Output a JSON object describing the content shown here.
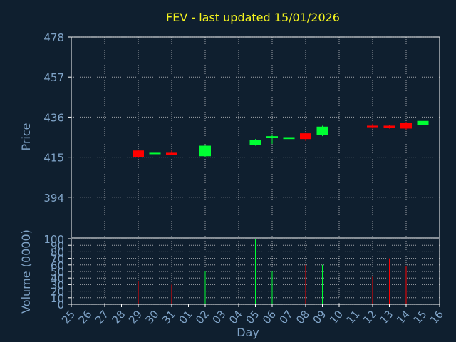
{
  "title": "FEV - last updated 15/01/2026",
  "chart_data": [
    {
      "type": "candlestick",
      "ylabel": "Price",
      "ylim": [
        373,
        478
      ],
      "yticks": [
        394,
        415,
        436,
        457,
        478
      ],
      "grid": true,
      "x": [
        "25",
        "26",
        "27",
        "28",
        "29",
        "30",
        "31",
        "01",
        "02",
        "03",
        "04",
        "05",
        "06",
        "07",
        "08",
        "09",
        "10",
        "11",
        "12",
        "13",
        "14",
        "15",
        "16"
      ],
      "up_color": "#00ff33",
      "down_color": "#ff0000",
      "candles": [
        {
          "x": "29",
          "open": 418.5,
          "high": 418.8,
          "low": 414.5,
          "close": 415.0
        },
        {
          "x": "30",
          "open": 416.8,
          "high": 417.5,
          "low": 416.5,
          "close": 417.3
        },
        {
          "x": "31",
          "open": 417.3,
          "high": 418.5,
          "low": 416.0,
          "close": 416.2
        },
        {
          "x": "02",
          "open": 415.5,
          "high": 421.3,
          "low": 415.0,
          "close": 421.0
        },
        {
          "x": "05",
          "open": 421.5,
          "high": 424.5,
          "low": 421.0,
          "close": 424.0
        },
        {
          "x": "06",
          "open": 425.5,
          "high": 427.0,
          "low": 422.0,
          "close": 426.0
        },
        {
          "x": "07",
          "open": 424.5,
          "high": 426.0,
          "low": 424.0,
          "close": 425.5
        },
        {
          "x": "08",
          "open": 427.5,
          "high": 428.0,
          "low": 423.5,
          "close": 424.5
        },
        {
          "x": "09",
          "open": 426.5,
          "high": 431.5,
          "low": 426.0,
          "close": 431.0
        },
        {
          "x": "12",
          "open": 431.5,
          "high": 432.5,
          "low": 430.0,
          "close": 430.7
        },
        {
          "x": "13",
          "open": 431.5,
          "high": 432.0,
          "low": 430.0,
          "close": 430.3
        },
        {
          "x": "14",
          "open": 433.0,
          "high": 433.5,
          "low": 429.5,
          "close": 430.0
        },
        {
          "x": "15",
          "open": 432.0,
          "high": 434.5,
          "low": 431.5,
          "close": 434.0
        }
      ]
    },
    {
      "type": "bar",
      "ylabel": "Volume (0000)",
      "xlabel": "Day",
      "ylim": [
        0,
        100
      ],
      "yticks": [
        0,
        10,
        20,
        30,
        40,
        50,
        60,
        70,
        80,
        90,
        100
      ],
      "grid": true,
      "bars": [
        {
          "x": "29",
          "value": 35,
          "dir": "down"
        },
        {
          "x": "30",
          "value": 42,
          "dir": "up"
        },
        {
          "x": "31",
          "value": 30,
          "dir": "down"
        },
        {
          "x": "02",
          "value": 50,
          "dir": "up"
        },
        {
          "x": "05",
          "value": 100,
          "dir": "up"
        },
        {
          "x": "06",
          "value": 50,
          "dir": "up"
        },
        {
          "x": "07",
          "value": 65,
          "dir": "up"
        },
        {
          "x": "08",
          "value": 60,
          "dir": "down"
        },
        {
          "x": "09",
          "value": 60,
          "dir": "up"
        },
        {
          "x": "12",
          "value": 42,
          "dir": "down"
        },
        {
          "x": "13",
          "value": 70,
          "dir": "down"
        },
        {
          "x": "14",
          "value": 58,
          "dir": "down"
        },
        {
          "x": "15",
          "value": 60,
          "dir": "up"
        }
      ]
    }
  ]
}
